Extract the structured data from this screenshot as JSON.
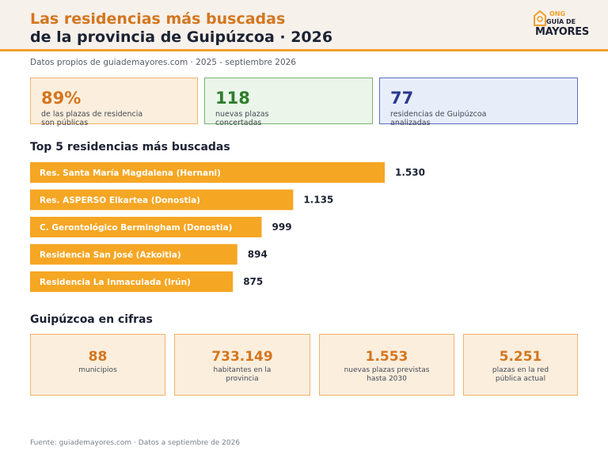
{
  "header": {
    "title_line1": "Las residencias más buscadas",
    "title_line2": "de la provincia de Guipúzcoa · 2026",
    "logo": {
      "ong": "ONG",
      "guia": "GUÍA DE",
      "mayores": "MAYORES"
    }
  },
  "subtitle": "Datos propios de guiademayores.com · 2025 - septiembre 2026",
  "stats": [
    {
      "value": "89%",
      "label": "de las plazas de residencia son públicas"
    },
    {
      "value": "118",
      "label": "nuevas plazas concertadas"
    },
    {
      "value": "77",
      "label": "residencias de Guipúzcoa analizadas"
    }
  ],
  "top_title": "Top 5 residencias más buscadas",
  "chart_data": {
    "type": "bar",
    "orientation": "horizontal",
    "categories": [
      "Res. Santa María Magdalena (Hernani)",
      "Res. ASPERSO Elkartea (Donostia)",
      "C. Gerontológico Bermingham (Donostia)",
      "Residencia San José (Azkoitia)",
      "Residencia La Inmaculada (Irún)"
    ],
    "values": [
      1530,
      1135,
      999,
      894,
      875
    ],
    "value_labels": [
      "1.530",
      "1.135",
      "999",
      "894",
      "875"
    ],
    "title": "Top 5 residencias más buscadas",
    "xlabel": "",
    "ylabel": "",
    "xlim": [
      0,
      1530
    ],
    "grid": false,
    "bar_color": "#f5a623"
  },
  "figures_title": "Guipúzcoa en cifras",
  "figures": [
    {
      "value": "88",
      "label": "municipios"
    },
    {
      "value": "733.149",
      "label": "habitantes en la provincia"
    },
    {
      "value": "1.553",
      "label": "nuevas plazas previstas hasta 2030"
    },
    {
      "value": "5.251",
      "label": "plazas en la red pública actual"
    }
  ],
  "source": "Fuente: guiademayores.com · Datos a septiembre de 2026",
  "colors": {
    "accent_orange": "#f5a623",
    "title_orange": "#d4761f",
    "green": "#2f7d2c",
    "navy": "#2a3a8c",
    "dark": "#1c2233"
  }
}
